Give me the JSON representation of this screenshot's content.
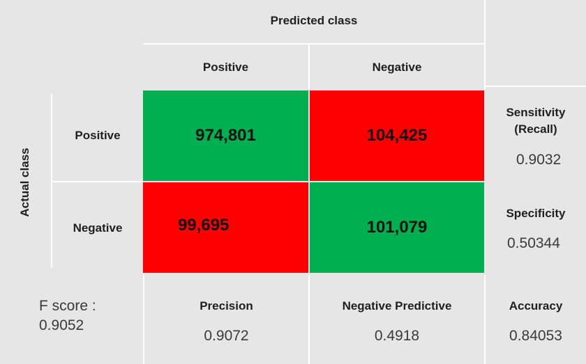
{
  "header": {
    "predicted_class": "Predicted class",
    "col_positive": "Positive",
    "col_negative": "Negative"
  },
  "side": {
    "actual_class": "Actual class",
    "row_positive": "Positive",
    "row_negative": "Negative"
  },
  "matrix": {
    "tp": "974,801",
    "fn": "104,425",
    "fp": "99,695",
    "tn": "101,079"
  },
  "colors": {
    "correct": "#00b050",
    "incorrect": "#ff0000",
    "background": "#e6e6e6"
  },
  "metrics": {
    "sensitivity_label_line1": "Sensitivity",
    "sensitivity_label_line2": "(Recall)",
    "sensitivity_value": "0.9032",
    "specificity_label": "Specificity",
    "specificity_value": "0.50344",
    "precision_label": "Precision",
    "precision_value": "0.9072",
    "npv_label": "Negative Predictive",
    "npv_value": "0.4918",
    "accuracy_label": "Accuracy",
    "accuracy_value": "0.84053",
    "fscore_label": "F score :",
    "fscore_value": "0.9052"
  }
}
